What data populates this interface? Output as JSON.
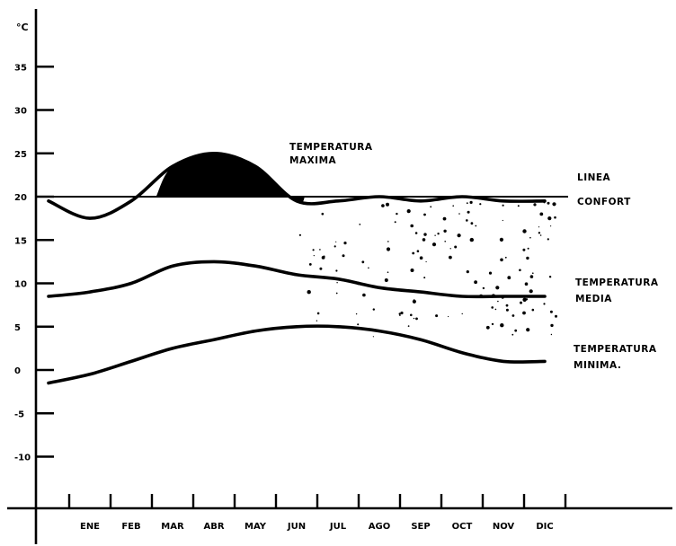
{
  "chart_data": {
    "type": "line",
    "ylabel": "°C",
    "y_ticks": [
      "35",
      "30",
      "25",
      "20",
      "15",
      "10",
      "5",
      "0",
      "-5",
      "-10"
    ],
    "ylim": [
      -15,
      40
    ],
    "categories": [
      "ENE",
      "FEB",
      "MAR",
      "ABR",
      "MAY",
      "JUN",
      "JUL",
      "AGO",
      "SEP",
      "OCT",
      "NOV",
      "DIC"
    ],
    "comfort_line": {
      "value": 20,
      "label_line1": "LINEA",
      "label_line2": "CONFORT"
    },
    "series": [
      {
        "name": "TEMPERATURA MAXIMA",
        "label_line1": "TEMPERATURA",
        "label_line2": "MAXIMA",
        "x": [
          -1.0,
          0.0,
          1.0,
          2.0,
          3.0,
          4.0,
          5.0,
          6.0,
          7.0,
          8.0,
          9.0,
          10.0,
          11.0
        ],
        "values": [
          19.5,
          17.5,
          19.5,
          23.5,
          25.0,
          23.5,
          19.5,
          19.5,
          20.0,
          19.5,
          20.0,
          19.5,
          19.5
        ]
      },
      {
        "name": "TEMPERATURA MEDIA",
        "label_line1": "TEMPERATURA",
        "label_line2": "MEDIA",
        "x": [
          -1.0,
          0.0,
          1.0,
          2.0,
          3.0,
          4.0,
          5.0,
          6.0,
          7.0,
          8.0,
          9.0,
          10.0,
          11.0
        ],
        "values": [
          8.5,
          9.0,
          10.0,
          12.0,
          12.5,
          12.0,
          11.0,
          10.5,
          9.5,
          9.0,
          8.5,
          8.5,
          8.5
        ]
      },
      {
        "name": "TEMPERATURA MINIMA",
        "label_line1": "TEMPERATURA",
        "label_line2": "MINIMA.",
        "x": [
          -1.0,
          0.0,
          1.0,
          2.0,
          3.0,
          4.0,
          5.0,
          6.0,
          7.0,
          8.0,
          9.0,
          10.0,
          11.0
        ],
        "values": [
          -1.5,
          -0.5,
          1.0,
          2.5,
          3.5,
          4.5,
          5.0,
          5.0,
          4.5,
          3.5,
          2.0,
          1.0,
          1.0
        ]
      }
    ],
    "grid": false,
    "legend": "none"
  }
}
